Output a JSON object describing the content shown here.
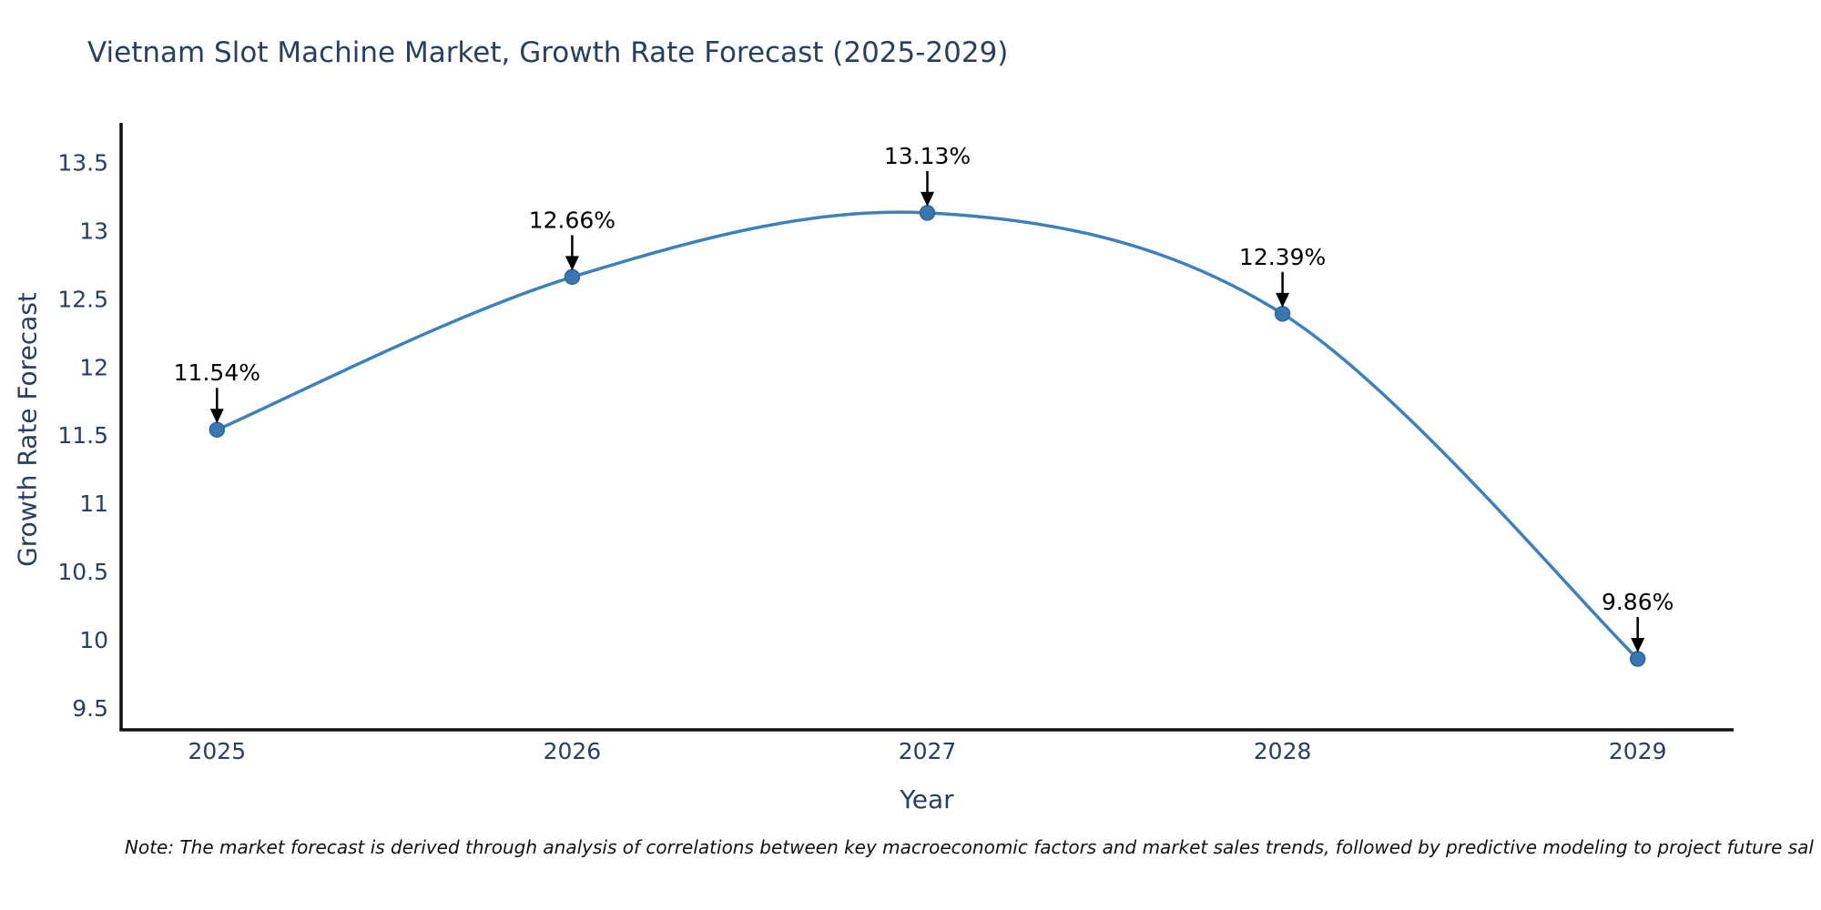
{
  "chart": {
    "title": "Vietnam Slot Machine Market, Growth Rate Forecast (2025-2029)",
    "note": "Note: The market forecast is derived through analysis of correlations between key macroeconomic factors and market sales trends, followed by predictive modeling to project future sal"
  },
  "chart_data": {
    "type": "line",
    "line_shape": "spline",
    "title": "Vietnam Slot Machine Market, Growth Rate Forecast (2025-2029)",
    "xlabel": "Year",
    "ylabel": "Growth Rate Forecast",
    "x": [
      2025,
      2026,
      2027,
      2028,
      2029
    ],
    "y": [
      11.54,
      12.66,
      13.13,
      12.39,
      9.86
    ],
    "point_labels": [
      "11.54%",
      "12.66%",
      "13.13%",
      "12.39%",
      "9.86%"
    ],
    "xticks": [
      2025,
      2026,
      2027,
      2028,
      2029
    ],
    "xtick_labels": [
      "2025",
      "2026",
      "2027",
      "2028",
      "2029"
    ],
    "yticks": [
      9.5,
      10,
      10.5,
      11,
      11.5,
      12,
      12.5,
      13,
      13.5
    ],
    "ytick_labels": [
      "9.5",
      "10",
      "10.5",
      "11",
      "11.5",
      "12",
      "12.5",
      "13",
      "13.5"
    ],
    "xlim": [
      2024.73,
      2029.27
    ],
    "ylim": [
      9.34,
      13.79
    ],
    "grid": false,
    "legend": "none",
    "colors": {
      "line": "#4080b8",
      "marker_fill": "#3a77b0",
      "marker_edge": "#31649a",
      "axis": "#111111",
      "tick_text": "#2a3f5f",
      "title_text": "#2a3f5f",
      "annotation_text": "#000000",
      "background": "#ffffff"
    }
  }
}
